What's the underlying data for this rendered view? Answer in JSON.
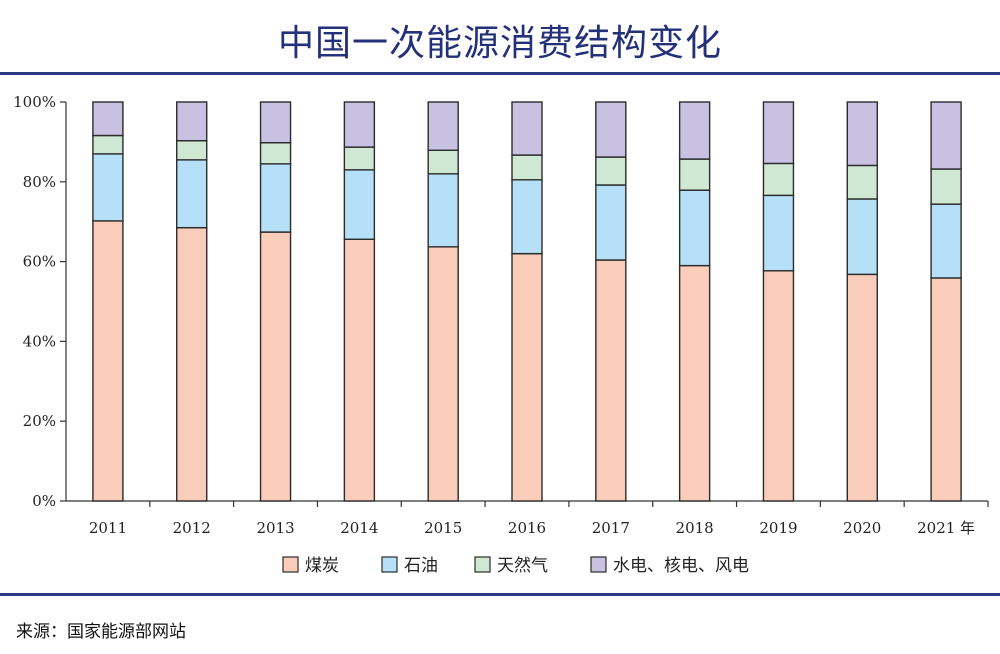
{
  "header": {
    "title": "中国一次能源消费结构变化"
  },
  "footer": {
    "source": "来源：国家能源部网站"
  },
  "chart_data": {
    "type": "bar",
    "stacked": true,
    "title": "中国一次能源消费结构变化",
    "categories": [
      "2011",
      "2012",
      "2013",
      "2014",
      "2015",
      "2016",
      "2017",
      "2018",
      "2019",
      "2020",
      "2021 年"
    ],
    "series": [
      {
        "name": "煤炭",
        "color": "#f9cdb9",
        "values": [
          70.2,
          68.5,
          67.4,
          65.6,
          63.7,
          62.0,
          60.4,
          59.0,
          57.7,
          56.8,
          55.9
        ]
      },
      {
        "name": "石油",
        "color": "#b5e0f7",
        "values": [
          16.8,
          17.0,
          17.1,
          17.4,
          18.3,
          18.5,
          18.8,
          18.9,
          18.9,
          18.9,
          18.5
        ]
      },
      {
        "name": "天然气",
        "color": "#cfe8d3",
        "values": [
          4.6,
          4.8,
          5.3,
          5.7,
          5.9,
          6.2,
          7.0,
          7.8,
          8.0,
          8.4,
          8.8
        ]
      },
      {
        "name": "水电、核电、风电",
        "color": "#c8c1e2",
        "values": [
          8.4,
          9.7,
          10.2,
          11.3,
          12.1,
          13.3,
          13.8,
          14.3,
          15.4,
          15.9,
          16.8
        ]
      }
    ],
    "yticks": [
      "0%",
      "20%",
      "40%",
      "60%",
      "80%",
      "100%"
    ],
    "ylim": [
      0,
      100
    ],
    "grid": false,
    "legend_position": "bottom"
  }
}
